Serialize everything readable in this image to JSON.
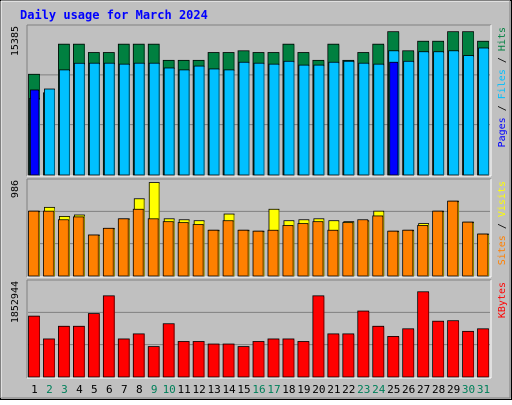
{
  "chart_data": {
    "type": "bar",
    "title": "Daily usage for March 2024",
    "days": [
      "1",
      "2",
      "3",
      "4",
      "5",
      "6",
      "7",
      "8",
      "9",
      "10",
      "11",
      "12",
      "13",
      "14",
      "15",
      "16",
      "17",
      "18",
      "19",
      "20",
      "21",
      "22",
      "23",
      "24",
      "25",
      "26",
      "27",
      "28",
      "29",
      "30",
      "31"
    ],
    "weekend_days": [
      "2",
      "3",
      "9",
      "10",
      "16",
      "17",
      "23",
      "24",
      "30",
      "31"
    ],
    "panels": [
      {
        "name": "hits-files-pages",
        "ymax_label": "15385",
        "ymax": 15385,
        "axis_label_parts": [
          "Pages",
          "Files",
          "Hits"
        ],
        "series": [
          {
            "name": "Hits",
            "color": "#008040",
            "values": [
              10542,
              8600,
              13692,
              13692,
              12820,
              12820,
              13692,
              13692,
              13692,
              12000,
              12000,
              12000,
              12820,
              12820,
              13000,
              12820,
              12820,
              13692,
              12820,
              12000,
              13692,
              12000,
              12820,
              13692,
              15000,
              13000,
              14000,
              14000,
              15000,
              15000,
              14000
            ]
          },
          {
            "name": "Files",
            "color": "#00c0ff",
            "values": [
              8000,
              9000,
              11000,
              11692,
              11700,
              11700,
              11600,
              11700,
              11700,
              11200,
              11000,
              11400,
              11100,
              11000,
              11800,
              11700,
              11600,
              11900,
              11500,
              11500,
              11800,
              11900,
              11700,
              11600,
              13000,
              11900,
              12900,
              12900,
              13000,
              12500,
              13292
            ]
          },
          {
            "name": "Pages",
            "color": "#0000ff",
            "values": [
              8900,
              0,
              0,
              0,
              0,
              0,
              0,
              0,
              0,
              0,
              0,
              0,
              0,
              0,
              0,
              0,
              0,
              0,
              0,
              0,
              0,
              0,
              0,
              0,
              11800,
              0,
              0,
              0,
              0,
              0,
              0
            ]
          }
        ]
      },
      {
        "name": "visits-sites",
        "ymax_label": "986",
        "ymax": 986,
        "axis_label_parts": [
          "Sites",
          "Visits"
        ],
        "series": [
          {
            "name": "Visits",
            "color": "#ffff00",
            "values": [
              680,
              720,
              625,
              640,
              430,
              500,
              600,
              810,
              980,
              600,
              590,
              580,
              480,
              650,
              480,
              470,
              700,
              580,
              590,
              600,
              580,
              570,
              580,
              680,
              470,
              480,
              550,
              680,
              785,
              565,
              440
            ]
          },
          {
            "name": "Sites",
            "color": "#ff8000",
            "values": [
              680,
              680,
              590,
              620,
              430,
              500,
              600,
              700,
              600,
              570,
              560,
              540,
              480,
              580,
              480,
              470,
              480,
              530,
              550,
              570,
              480,
              560,
              590,
              630,
              470,
              480,
              530,
              680,
              785,
              565,
              440
            ]
          }
        ]
      },
      {
        "name": "kbytes",
        "ymax_label": "1852944",
        "ymax": 1852944,
        "axis_label_parts": [
          "KBytes"
        ],
        "series": [
          {
            "name": "KBytes",
            "color": "#ff0000",
            "values": [
              1200000,
              750000,
              1000000,
              1000000,
              1250000,
              1600000,
              750000,
              850000,
              600000,
              1050000,
              700000,
              700000,
              650000,
              650000,
              600000,
              700000,
              750000,
              750000,
              700000,
              1600000,
              850000,
              850000,
              1300000,
              1000000,
              800000,
              950000,
              1680000,
              1100000,
              1110000,
              900000,
              950000
            ]
          }
        ]
      }
    ]
  }
}
